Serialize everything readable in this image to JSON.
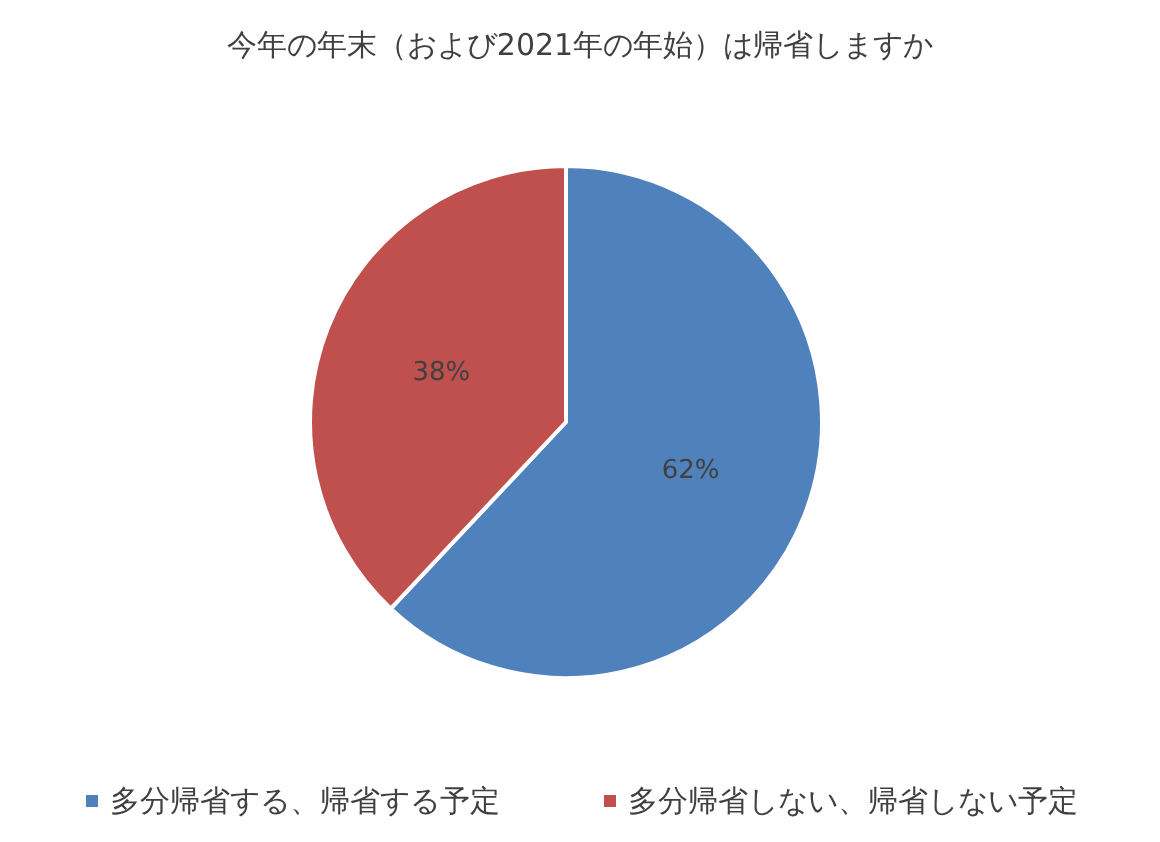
{
  "chart_data": {
    "type": "pie",
    "title": "今年の年末（および2021年の年始）は帰省しますか",
    "categories": [
      "多分帰省する、帰省する予定",
      "多分帰省しない、帰省しない予定"
    ],
    "values": [
      62,
      38
    ],
    "colors": [
      "#4f81bd",
      "#c0504d"
    ],
    "value_labels": [
      "62%",
      "38%"
    ],
    "legend": "bottom"
  }
}
